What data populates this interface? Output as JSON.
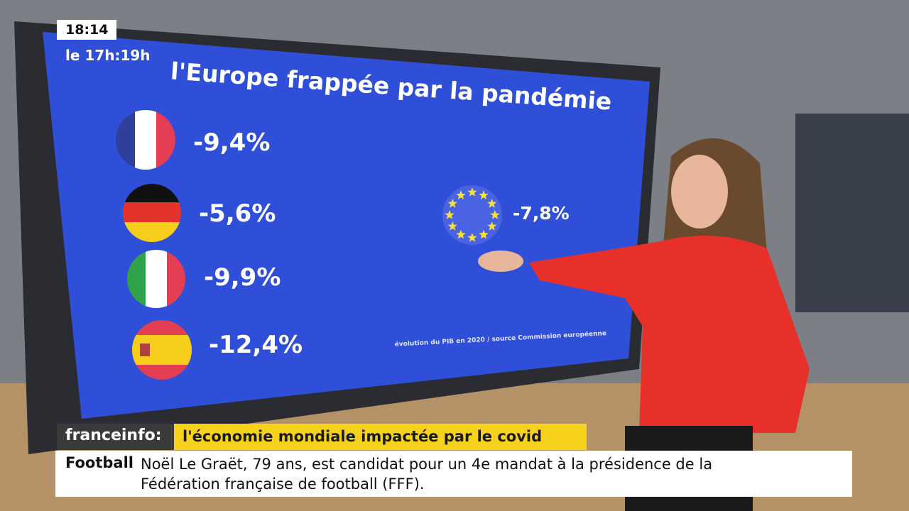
{
  "clock": {
    "time": "18:14",
    "program": "le 17h:19h"
  },
  "screen": {
    "title": "l'Europe frappée par la pandémie",
    "items": [
      "-9,4%",
      "-5,6%",
      "-9,9%",
      "-12,4%"
    ],
    "eu_value": "-7,8%",
    "source": "évolution du PIB en 2020 / source Commission européenne"
  },
  "banner": {
    "brand": "franceinfo:",
    "headline": "l'économie mondiale impactée par le covid"
  },
  "ticker": {
    "topic": "Football",
    "text": "Noël Le Graët, 79 ans, est candidat pour un 4e mandat à la présidence de la Fédération française de football (FFF)."
  }
}
